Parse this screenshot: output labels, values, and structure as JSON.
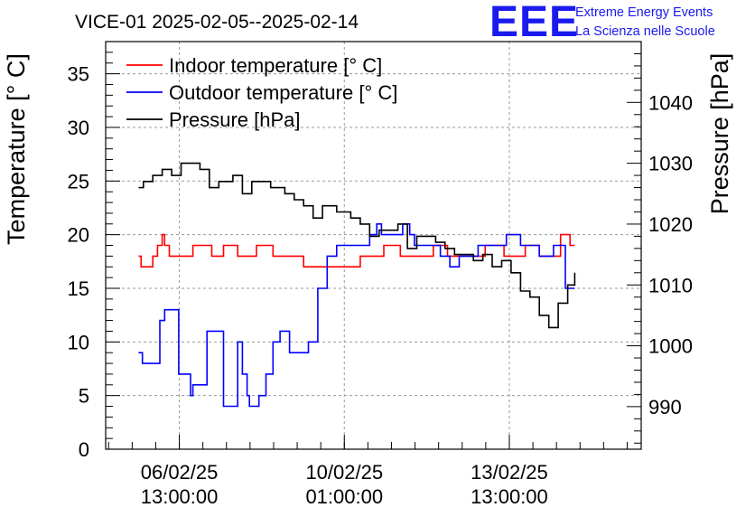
{
  "chart_title": "VICE-01 2025-02-05--2025-02-14",
  "logo": {
    "letters": "EEE",
    "line1": "Extreme Energy Events",
    "line2": "La Scienza nelle Scuole",
    "color": "#1a1aee"
  },
  "chart_data": {
    "type": "line",
    "title": "VICE-01 2025-02-05--2025-02-14",
    "ylabel": "Temperature [° C]",
    "y2label": "Pressure [hPa]",
    "ylim": [
      0,
      38
    ],
    "y2lim": [
      983,
      1050
    ],
    "yticks": [
      0,
      5,
      10,
      15,
      20,
      25,
      30,
      35
    ],
    "y2ticks": [
      990,
      1000,
      1010,
      1020,
      1030,
      1040
    ],
    "xlim": [
      0,
      11.36
    ],
    "x_unit": "days from 2025-02-05 00:00",
    "xticks": [
      {
        "x": 1.5625,
        "date": "06/02/25",
        "time": "13:00:00"
      },
      {
        "x": 5.0625,
        "date": "10/02/25",
        "time": "01:00:00"
      },
      {
        "x": 8.5625,
        "date": "13/02/25",
        "time": "13:00:00"
      }
    ],
    "grid": true,
    "legend_position": "top-left",
    "series": [
      {
        "name": "Indoor temperature [° C]",
        "color": "#ff0000",
        "axis": "left",
        "x": [
          0.7,
          0.75,
          0.95,
          1.0,
          1.1,
          1.2,
          1.25,
          1.35,
          1.75,
          1.85,
          2.1,
          2.25,
          2.3,
          2.5,
          2.7,
          2.8,
          3.1,
          3.2,
          3.45,
          3.55,
          3.85,
          4.1,
          4.2,
          5.3,
          5.4,
          5.9,
          6.1,
          6.25,
          6.4,
          6.95,
          7.05,
          7.25,
          7.5,
          8.05,
          8.2,
          8.45,
          8.6,
          8.9,
          9.2,
          9.65,
          9.85,
          9.95
        ],
        "y": [
          18,
          17,
          17,
          18,
          19,
          20,
          19,
          18,
          18,
          19,
          19,
          18,
          18,
          19,
          19,
          18,
          18,
          19,
          19,
          18,
          18,
          18,
          17,
          17,
          18,
          19,
          19,
          18,
          18,
          19,
          19,
          18,
          18,
          19,
          19,
          18,
          18,
          19,
          18,
          20,
          19,
          19
        ]
      },
      {
        "name": "Outdoor temperature [° C]",
        "color": "#0000ff",
        "axis": "left",
        "x": [
          0.7,
          0.78,
          0.95,
          1.15,
          1.25,
          1.55,
          1.8,
          1.85,
          2.15,
          2.5,
          2.8,
          2.9,
          3.0,
          3.05,
          3.25,
          3.4,
          3.55,
          3.7,
          3.9,
          4.05,
          4.3,
          4.5,
          4.7,
          4.9,
          5.35,
          5.6,
          5.75,
          5.85,
          6.15,
          6.3,
          6.45,
          6.55,
          6.9,
          7.1,
          7.3,
          7.5,
          7.65,
          7.9,
          8.5,
          8.8,
          9.05,
          9.2,
          9.5,
          9.75,
          9.95
        ],
        "y": [
          9,
          8,
          8,
          12,
          13,
          7,
          5,
          6,
          11,
          4,
          10,
          7,
          5,
          4,
          5,
          7,
          10,
          11,
          9,
          9,
          10,
          15,
          18,
          19,
          19,
          20,
          21,
          20,
          20,
          21,
          20,
          19,
          19,
          18,
          17,
          18,
          18,
          19,
          20,
          19,
          19,
          18,
          19,
          15,
          15
        ]
      },
      {
        "name": "Pressure [hPa]",
        "color": "#000000",
        "axis": "right",
        "x": [
          0.7,
          0.8,
          1.0,
          1.2,
          1.4,
          1.6,
          1.8,
          2.0,
          2.2,
          2.4,
          2.7,
          2.9,
          3.1,
          3.5,
          3.8,
          4.0,
          4.2,
          4.4,
          4.6,
          4.9,
          5.2,
          5.4,
          5.6,
          5.8,
          6.0,
          6.2,
          6.4,
          6.6,
          6.8,
          7.0,
          7.2,
          7.4,
          7.6,
          7.8,
          8.0,
          8.2,
          8.4,
          8.6,
          8.8,
          9.0,
          9.2,
          9.4,
          9.6,
          9.8,
          9.95
        ],
        "y": [
          1026,
          1027,
          1028,
          1029,
          1028,
          1030,
          1030,
          1029,
          1026,
          1027,
          1028,
          1025,
          1027,
          1026,
          1025,
          1024,
          1023,
          1021,
          1023,
          1022,
          1021,
          1020,
          1018,
          1019,
          1019,
          1020,
          1016,
          1018,
          1018,
          1017,
          1016,
          1015,
          1015,
          1014,
          1015,
          1013,
          1014,
          1012,
          1009,
          1008,
          1005,
          1003,
          1007,
          1010,
          1012
        ]
      }
    ]
  }
}
